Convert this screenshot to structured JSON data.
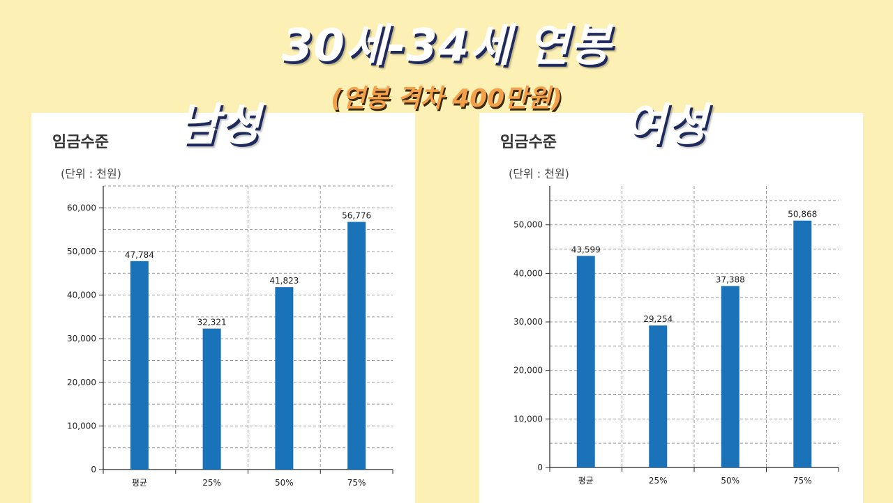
{
  "title": "30세-34세 연봉",
  "subtitle": "(연봉 격차 400만원)",
  "male_label": "남성",
  "female_label": "여성",
  "bar_color": "#1a73b8",
  "panels": [
    {
      "heading": "임금수준",
      "unit": "(단위 : 천원)"
    },
    {
      "heading": "임금수준",
      "unit": "(단위 : 천원)"
    }
  ],
  "chart_data": [
    {
      "type": "bar",
      "title": "임금수준",
      "ylabel": "(단위 : 천원)",
      "categories": [
        "평균",
        "25%",
        "50%",
        "75%"
      ],
      "values": [
        47784,
        32321,
        41823,
        56776
      ],
      "value_labels": [
        "47,784",
        "32,321",
        "41,823",
        "56,776"
      ],
      "ylim": [
        0,
        65000
      ],
      "yticks": [
        0,
        10000,
        20000,
        30000,
        40000,
        50000,
        60000
      ],
      "ytick_labels": [
        "0",
        "10,000",
        "20,000",
        "30,000",
        "40,000",
        "50,000",
        "60,000"
      ],
      "grid": true
    },
    {
      "type": "bar",
      "title": "임금수준",
      "ylabel": "(단위 : 천원)",
      "categories": [
        "평균",
        "25%",
        "50%",
        "75%"
      ],
      "values": [
        43599,
        29254,
        37388,
        50868
      ],
      "value_labels": [
        "43,599",
        "29,254",
        "37,388",
        "50,868"
      ],
      "ylim": [
        0,
        58000
      ],
      "yticks": [
        0,
        10000,
        20000,
        30000,
        40000,
        50000
      ],
      "ytick_labels": [
        "0",
        "10,000",
        "20,000",
        "30,000",
        "40,000",
        "50,000"
      ],
      "grid": true
    }
  ]
}
